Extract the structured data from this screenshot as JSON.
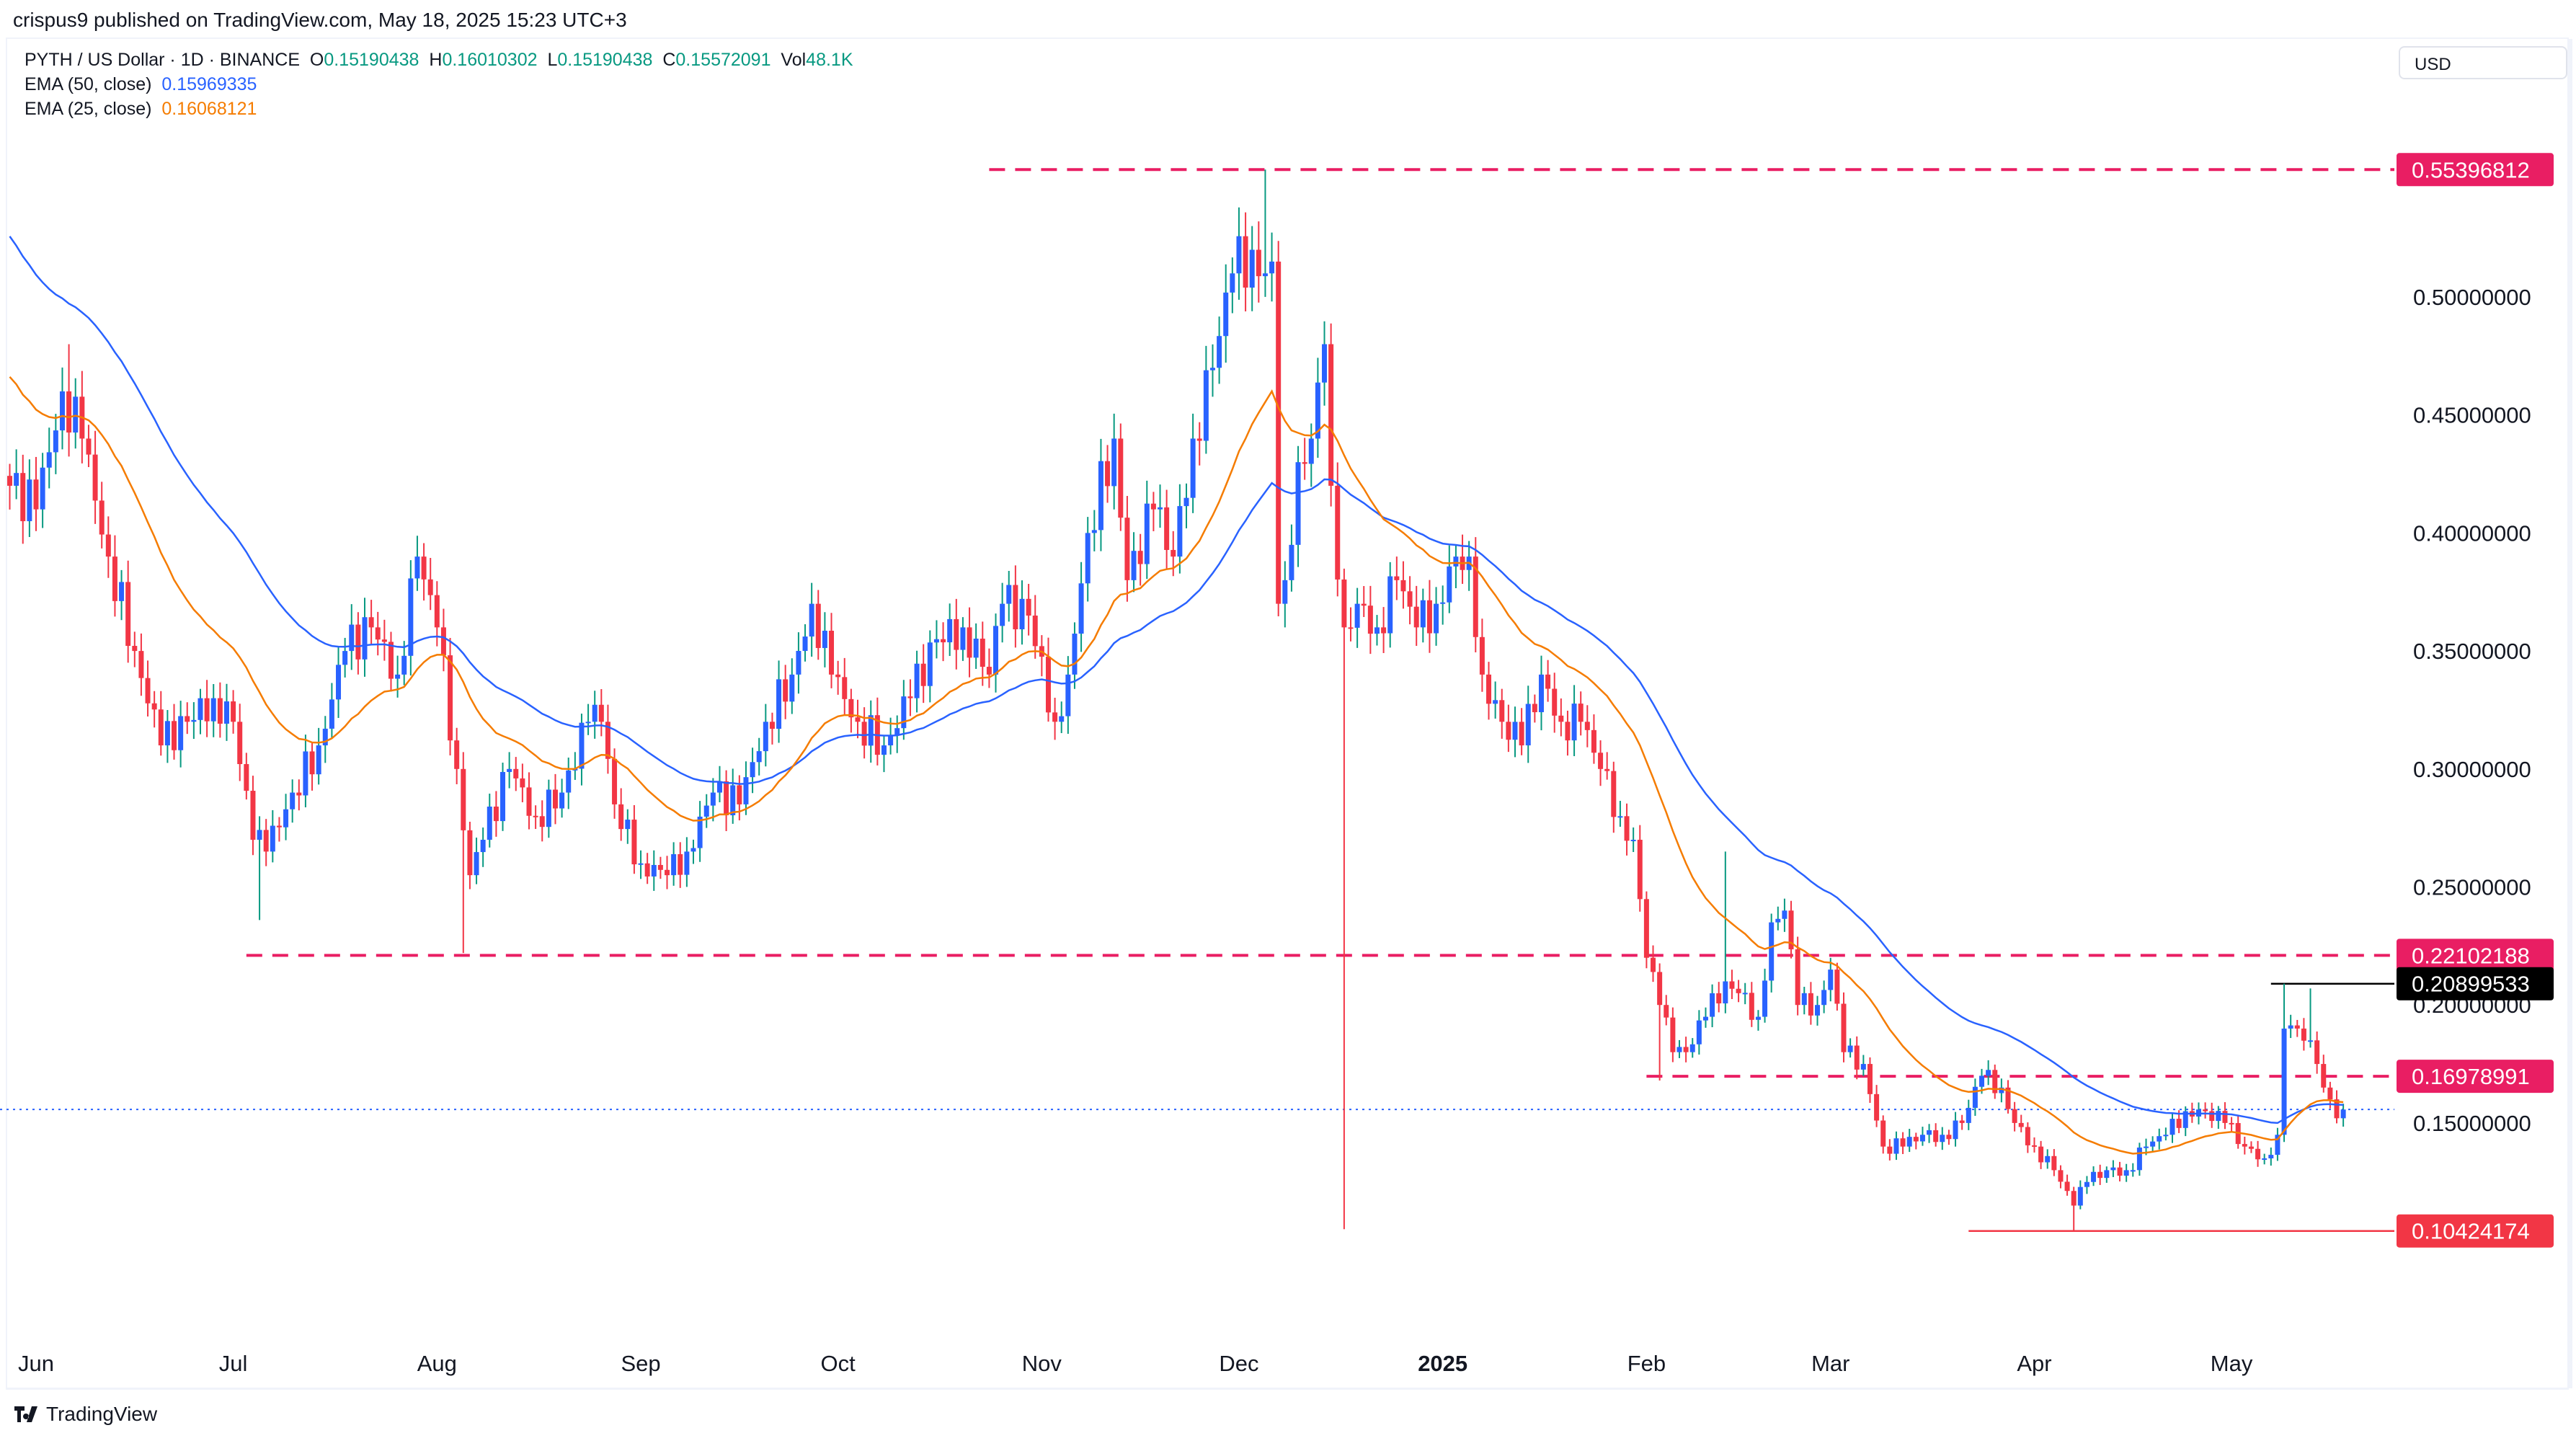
{
  "header": {
    "published": "crispus9 published on TradingView.com, May 18, 2025 15:23 UTC+3",
    "symbol": "PYTH / US Dollar · 1D · BINANCE",
    "o_label": "O",
    "o": "0.15190438",
    "h_label": "H",
    "h": "0.16010302",
    "l_label": "L",
    "l": "0.15190438",
    "c_label": "C",
    "c": "0.15572091",
    "vol_label": "Vol",
    "vol": "48.1K",
    "ema50_label": "EMA (50, close)",
    "ema50": "0.15969335",
    "ema25_label": "EMA (25, close)",
    "ema25": "0.16068121",
    "currency": "USD"
  },
  "footer": {
    "brand": "TradingView"
  },
  "colors": {
    "up_body": "#2962ff",
    "up_wick": "#089981",
    "down": "#f23645",
    "ema50": "#2962ff",
    "ema25": "#f57c00",
    "level": "#e91e63",
    "low_level": "#f23645",
    "resistance": "#000000"
  },
  "chart_data": {
    "type": "candlestick",
    "symbol": "PYTH / US Dollar",
    "interval": "1D",
    "y_axis": {
      "ticks": [
        "0.50000000",
        "0.45000000",
        "0.40000000",
        "0.35000000",
        "0.30000000",
        "0.25000000",
        "0.20000000",
        "0.15000000"
      ],
      "tick_values": [
        0.5,
        0.45,
        0.4,
        0.35,
        0.3,
        0.25,
        0.2,
        0.15
      ],
      "position": "right"
    },
    "x_axis": {
      "ticks": [
        {
          "label": "Jun",
          "date": "2024-06-01"
        },
        {
          "label": "Jul",
          "date": "2024-07-01"
        },
        {
          "label": "Aug",
          "date": "2024-08-01"
        },
        {
          "label": "Sep",
          "date": "2024-09-01"
        },
        {
          "label": "Oct",
          "date": "2024-10-01"
        },
        {
          "label": "Nov",
          "date": "2024-11-01"
        },
        {
          "label": "Dec",
          "date": "2024-12-01"
        },
        {
          "label": "2025",
          "date": "2025-01-01",
          "bold": true
        },
        {
          "label": "Feb",
          "date": "2025-02-01"
        },
        {
          "label": "Mar",
          "date": "2025-03-01"
        },
        {
          "label": "Apr",
          "date": "2025-04-01"
        },
        {
          "label": "May",
          "date": "2025-05-01"
        }
      ]
    },
    "close_waypoints": [
      [
        "2024-05-28",
        0.42
      ],
      [
        "2024-06-01",
        0.41
      ],
      [
        "2024-06-05",
        0.46
      ],
      [
        "2024-06-08",
        0.44
      ],
      [
        "2024-06-12",
        0.39
      ],
      [
        "2024-06-16",
        0.35
      ],
      [
        "2024-06-20",
        0.31
      ],
      [
        "2024-06-24",
        0.32
      ],
      [
        "2024-06-28",
        0.33
      ],
      [
        "2024-07-01",
        0.32
      ],
      [
        "2024-07-04",
        0.27
      ],
      [
        "2024-07-06",
        0.265
      ],
      [
        "2024-07-10",
        0.29
      ],
      [
        "2024-07-14",
        0.31
      ],
      [
        "2024-07-18",
        0.35
      ],
      [
        "2024-07-22",
        0.36
      ],
      [
        "2024-07-26",
        0.34
      ],
      [
        "2024-07-29",
        0.39
      ],
      [
        "2024-08-01",
        0.36
      ],
      [
        "2024-08-04",
        0.3
      ],
      [
        "2024-08-06",
        0.255
      ],
      [
        "2024-08-08",
        0.27
      ],
      [
        "2024-08-12",
        0.3
      ],
      [
        "2024-08-16",
        0.28
      ],
      [
        "2024-08-20",
        0.29
      ],
      [
        "2024-08-24",
        0.32
      ],
      [
        "2024-08-26",
        0.32
      ],
      [
        "2024-08-28",
        0.285
      ],
      [
        "2024-09-01",
        0.26
      ],
      [
        "2024-09-05",
        0.255
      ],
      [
        "2024-09-08",
        0.265
      ],
      [
        "2024-09-12",
        0.29
      ],
      [
        "2024-09-16",
        0.285
      ],
      [
        "2024-09-20",
        0.32
      ],
      [
        "2024-09-24",
        0.34
      ],
      [
        "2024-09-27",
        0.37
      ],
      [
        "2024-09-30",
        0.34
      ],
      [
        "2024-10-04",
        0.32
      ],
      [
        "2024-10-08",
        0.31
      ],
      [
        "2024-10-12",
        0.33
      ],
      [
        "2024-10-16",
        0.355
      ],
      [
        "2024-10-20",
        0.36
      ],
      [
        "2024-10-24",
        0.34
      ],
      [
        "2024-10-26",
        0.37
      ],
      [
        "2024-10-30",
        0.365
      ],
      [
        "2024-11-03",
        0.32
      ],
      [
        "2024-11-05",
        0.34
      ],
      [
        "2024-11-08",
        0.4
      ],
      [
        "2024-11-12",
        0.44
      ],
      [
        "2024-11-14",
        0.38
      ],
      [
        "2024-11-18",
        0.41
      ],
      [
        "2024-11-21",
        0.39
      ],
      [
        "2024-11-24",
        0.44
      ],
      [
        "2024-11-27",
        0.47
      ],
      [
        "2024-11-30",
        0.51
      ],
      [
        "2024-12-03",
        0.52
      ],
      [
        "2024-12-05",
        0.51
      ],
      [
        "2024-12-06",
        0.515
      ],
      [
        "2024-12-07",
        0.37
      ],
      [
        "2024-12-08",
        0.38
      ],
      [
        "2024-12-10",
        0.43
      ],
      [
        "2024-12-12",
        0.44
      ],
      [
        "2024-12-14",
        0.48
      ],
      [
        "2024-12-15",
        0.42
      ],
      [
        "2024-12-17",
        0.36
      ],
      [
        "2024-12-19",
        0.37
      ],
      [
        "2024-12-22",
        0.36
      ],
      [
        "2024-12-25",
        0.38
      ],
      [
        "2024-12-28",
        0.36
      ],
      [
        "2024-12-31",
        0.37
      ],
      [
        "2025-01-03",
        0.39
      ],
      [
        "2025-01-05",
        0.39
      ],
      [
        "2025-01-07",
        0.34
      ],
      [
        "2025-01-10",
        0.32
      ],
      [
        "2025-01-13",
        0.31
      ],
      [
        "2025-01-16",
        0.34
      ],
      [
        "2025-01-19",
        0.32
      ],
      [
        "2025-01-22",
        0.32
      ],
      [
        "2025-01-25",
        0.3
      ],
      [
        "2025-01-28",
        0.28
      ],
      [
        "2025-01-30",
        0.27
      ],
      [
        "2025-02-01",
        0.22
      ],
      [
        "2025-02-03",
        0.2
      ],
      [
        "2025-02-05",
        0.18
      ],
      [
        "2025-02-07",
        0.18
      ],
      [
        "2025-02-10",
        0.195
      ],
      [
        "2025-02-13",
        0.21
      ],
      [
        "2025-02-15",
        0.205
      ],
      [
        "2025-02-18",
        0.195
      ],
      [
        "2025-02-20",
        0.235
      ],
      [
        "2025-02-22",
        0.24
      ],
      [
        "2025-02-24",
        0.2
      ],
      [
        "2025-02-27",
        0.2
      ],
      [
        "2025-03-01",
        0.215
      ],
      [
        "2025-03-03",
        0.18
      ],
      [
        "2025-03-06",
        0.175
      ],
      [
        "2025-03-09",
        0.14
      ],
      [
        "2025-03-12",
        0.14
      ],
      [
        "2025-03-15",
        0.145
      ],
      [
        "2025-03-18",
        0.145
      ],
      [
        "2025-03-21",
        0.15
      ],
      [
        "2025-03-24",
        0.17
      ],
      [
        "2025-03-27",
        0.165
      ],
      [
        "2025-03-29",
        0.15
      ],
      [
        "2025-04-01",
        0.14
      ],
      [
        "2025-04-04",
        0.13
      ],
      [
        "2025-04-07",
        0.115
      ],
      [
        "2025-04-09",
        0.125
      ],
      [
        "2025-04-12",
        0.13
      ],
      [
        "2025-04-15",
        0.13
      ],
      [
        "2025-04-18",
        0.14
      ],
      [
        "2025-04-21",
        0.145
      ],
      [
        "2025-04-24",
        0.155
      ],
      [
        "2025-04-27",
        0.155
      ],
      [
        "2025-04-30",
        0.15
      ],
      [
        "2025-05-03",
        0.14
      ],
      [
        "2025-05-06",
        0.135
      ],
      [
        "2025-05-08",
        0.145
      ],
      [
        "2025-05-09",
        0.19
      ],
      [
        "2025-05-11",
        0.19
      ],
      [
        "2025-05-13",
        0.185
      ],
      [
        "2025-05-14",
        0.175
      ],
      [
        "2025-05-15",
        0.165
      ],
      [
        "2025-05-16",
        0.16
      ],
      [
        "2025-05-17",
        0.152
      ],
      [
        "2025-05-18",
        0.1557
      ]
    ],
    "notable_wicks": [
      {
        "date": "2024-06-06",
        "high": 0.48
      },
      {
        "date": "2024-07-05",
        "low": 0.236
      },
      {
        "date": "2024-08-05",
        "low": 0.222
      },
      {
        "date": "2024-12-05",
        "high": 0.55396812
      },
      {
        "date": "2024-12-08",
        "low": 0.36
      },
      {
        "date": "2024-12-17",
        "low": 0.105
      },
      {
        "date": "2025-02-03",
        "low": 0.168
      },
      {
        "date": "2025-02-13",
        "high": 0.265
      },
      {
        "date": "2025-04-07",
        "low": 0.10424174
      },
      {
        "date": "2025-05-09",
        "high": 0.20899533
      },
      {
        "date": "2025-05-13",
        "high": 0.207
      }
    ],
    "indicators": [
      {
        "name": "EMA (50, close)",
        "last": 0.15969335,
        "color": "#2962ff"
      },
      {
        "name": "EMA (25, close)",
        "last": 0.16068121,
        "color": "#f57c00"
      }
    ],
    "levels": [
      {
        "value": 0.55396812,
        "label": "0.55396812",
        "style": "dashed",
        "color": "#e91e63",
        "from": "2024-10-24"
      },
      {
        "value": 0.22102188,
        "label": "0.22102188",
        "style": "dashed",
        "color": "#e91e63",
        "from": "2024-07-03"
      },
      {
        "value": 0.20899533,
        "label": "0.20899533",
        "style": "solid",
        "color": "#000000",
        "from": "2025-05-07"
      },
      {
        "value": 0.16978991,
        "label": "0.16978991",
        "style": "dashed",
        "color": "#e91e63",
        "from": "2025-02-01"
      },
      {
        "value": 0.10424174,
        "label": "0.10424174",
        "style": "solid",
        "color": "#f23645",
        "from": "2025-03-22"
      }
    ],
    "last_price": 0.15572091
  }
}
